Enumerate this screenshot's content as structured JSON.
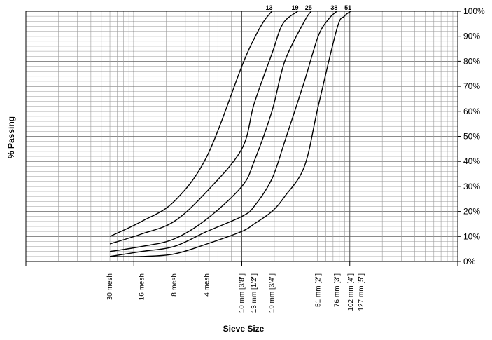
{
  "chart_data": {
    "type": "line",
    "title": "",
    "xlabel": "Sieve Size",
    "ylabel": "% Passing",
    "xscale": "log",
    "xunit": "mm",
    "xlim": [
      0.1,
      1000
    ],
    "ylim": [
      0,
      100
    ],
    "grid": true,
    "ytick_labels": [
      "0%",
      "10%",
      "20%",
      "30%",
      "40%",
      "50%",
      "60%",
      "70%",
      "80%",
      "90%",
      "100%"
    ],
    "xticks": [
      {
        "x": 0.6,
        "label": "30 mesh"
      },
      {
        "x": 1.18,
        "label": "16 mesh"
      },
      {
        "x": 2.36,
        "label": "8 mesh"
      },
      {
        "x": 4.75,
        "label": "4 mesh"
      },
      {
        "x": 10,
        "label": "10 mm [3/8\"]"
      },
      {
        "x": 13,
        "label": "13 mm [1/2\"]"
      },
      {
        "x": 19,
        "label": "19 mm [3/4\"]"
      },
      {
        "x": 51,
        "label": "51 mm [2\"]"
      },
      {
        "x": 76,
        "label": "76 mm [3\"]"
      },
      {
        "x": 102,
        "label": "102 mm [4\"]"
      },
      {
        "x": 127,
        "label": "127 mm [5\"]"
      }
    ],
    "series": [
      {
        "name": "13",
        "points": [
          [
            0.6,
            10
          ],
          [
            1.18,
            16
          ],
          [
            2.36,
            24
          ],
          [
            4.75,
            42
          ],
          [
            10,
            78
          ],
          [
            13,
            89
          ],
          [
            16,
            96
          ],
          [
            19,
            100
          ]
        ]
      },
      {
        "name": "19",
        "points": [
          [
            0.6,
            7
          ],
          [
            1.18,
            11
          ],
          [
            2.36,
            16
          ],
          [
            4.75,
            28
          ],
          [
            10,
            45
          ],
          [
            13,
            63
          ],
          [
            19,
            83
          ],
          [
            24,
            95
          ],
          [
            33,
            100
          ]
        ]
      },
      {
        "name": "25",
        "points": [
          [
            0.6,
            4
          ],
          [
            1.18,
            6
          ],
          [
            2.36,
            9
          ],
          [
            4.75,
            17
          ],
          [
            10,
            30
          ],
          [
            13,
            40
          ],
          [
            19,
            60
          ],
          [
            25,
            80
          ],
          [
            38,
            96
          ],
          [
            44,
            100
          ]
        ]
      },
      {
        "name": "38",
        "points": [
          [
            0.6,
            2
          ],
          [
            1.18,
            4
          ],
          [
            2.36,
            6
          ],
          [
            4.75,
            12
          ],
          [
            10,
            18
          ],
          [
            13,
            22
          ],
          [
            19,
            33
          ],
          [
            25,
            48
          ],
          [
            38,
            72
          ],
          [
            51,
            90
          ],
          [
            64,
            97
          ],
          [
            76,
            100
          ]
        ]
      },
      {
        "name": "51",
        "points": [
          [
            0.6,
            2
          ],
          [
            1.18,
            2
          ],
          [
            2.36,
            3
          ],
          [
            4.75,
            7
          ],
          [
            10,
            12
          ],
          [
            13,
            15
          ],
          [
            19,
            20
          ],
          [
            25,
            26
          ],
          [
            38,
            38
          ],
          [
            51,
            62
          ],
          [
            76,
            93
          ],
          [
            89,
            98
          ],
          [
            102,
            100
          ]
        ]
      }
    ]
  }
}
